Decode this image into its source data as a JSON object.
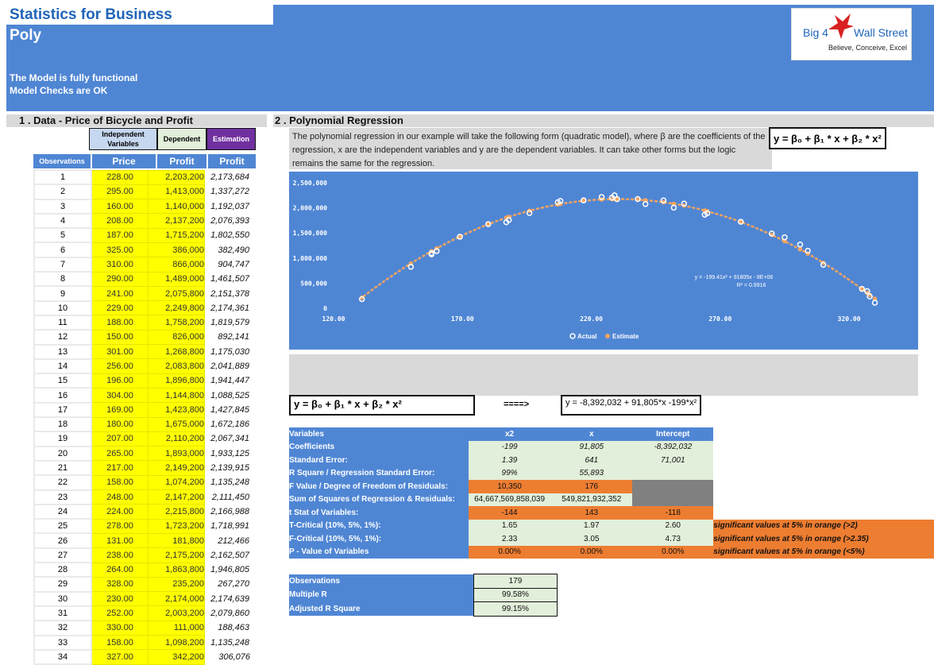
{
  "header": {
    "title": "Statistics for Business",
    "subtitle": "Poly",
    "status_lines": [
      "The Model is fully functional",
      "Model Checks are OK"
    ],
    "logo": {
      "left": "Big 4",
      "right": "Wall Street",
      "tagline": "Believe, Conceive, Excel"
    }
  },
  "section1": {
    "title": "1 . Data - Price of Bicycle and Profit",
    "independent_label": "Independent Variables",
    "dependent_label": "Dependent",
    "estimation_label": "Estimation",
    "columns": [
      "Observations",
      "Price",
      "Profit",
      "Profit"
    ],
    "rows": [
      [
        "1",
        "228.00",
        "2,203,200",
        "2,173,684"
      ],
      [
        "2",
        "295.00",
        "1,413,000",
        "1,337,272"
      ],
      [
        "3",
        "160.00",
        "1,140,000",
        "1,192,037"
      ],
      [
        "4",
        "208.00",
        "2,137,200",
        "2,076,393"
      ],
      [
        "5",
        "187.00",
        "1,715,200",
        "1,802,550"
      ],
      [
        "6",
        "325.00",
        "386,000",
        "382,490"
      ],
      [
        "7",
        "310.00",
        "866,000",
        "904,747"
      ],
      [
        "8",
        "290.00",
        "1,489,000",
        "1,461,507"
      ],
      [
        "9",
        "241.00",
        "2,075,800",
        "2,151,378"
      ],
      [
        "10",
        "229.00",
        "2,249,800",
        "2,174,361"
      ],
      [
        "11",
        "188.00",
        "1,758,200",
        "1,819,579"
      ],
      [
        "12",
        "150.00",
        "826,000",
        "892,141"
      ],
      [
        "13",
        "301.00",
        "1,268,800",
        "1,175,030"
      ],
      [
        "14",
        "256.00",
        "2,083,800",
        "2,041,889"
      ],
      [
        "15",
        "196.00",
        "1,896,800",
        "1,941,447"
      ],
      [
        "16",
        "304.00",
        "1,144,800",
        "1,088,525"
      ],
      [
        "17",
        "169.00",
        "1,423,800",
        "1,427,845"
      ],
      [
        "18",
        "180.00",
        "1,675,000",
        "1,672,186"
      ],
      [
        "19",
        "207.00",
        "2,110,200",
        "2,067,341"
      ],
      [
        "20",
        "265.00",
        "1,893,000",
        "1,933,125"
      ],
      [
        "21",
        "217.00",
        "2,149,200",
        "2,139,915"
      ],
      [
        "22",
        "158.00",
        "1,074,200",
        "1,135,248"
      ],
      [
        "23",
        "248.00",
        "2,147,200",
        "2,111,450"
      ],
      [
        "24",
        "224.00",
        "2,215,800",
        "2,166,988"
      ],
      [
        "25",
        "278.00",
        "1,723,200",
        "1,718,991"
      ],
      [
        "26",
        "131.00",
        "181,800",
        "212,466"
      ],
      [
        "27",
        "238.00",
        "2,175,200",
        "2,162,507"
      ],
      [
        "28",
        "264.00",
        "1,863,800",
        "1,946,805"
      ],
      [
        "29",
        "328.00",
        "235,200",
        "267,270"
      ],
      [
        "30",
        "230.00",
        "2,174,000",
        "2,174,639"
      ],
      [
        "31",
        "252.00",
        "2,003,200",
        "2,079,860"
      ],
      [
        "32",
        "330.00",
        "111,000",
        "188,463"
      ],
      [
        "33",
        "158.00",
        "1,098,200",
        "1,135,248"
      ],
      [
        "34",
        "327.00",
        "342,200",
        "306,076"
      ]
    ]
  },
  "section2": {
    "title": "2 . Polynomial Regression",
    "description": "The polynomial regression in our example will take the following form (quadratic model), where β are the coefficients of the regression, x are the independent variables and y are the dependent variables. It can take other forms but the logic remains the same for the regression.",
    "equation": "y = β₀ + β₁ * x + β₂ * x²",
    "arrow": "====>",
    "fitted_equation": "y = -8,392,032 + 91,805*x -199*x²"
  },
  "chart_data": {
    "type": "scatter",
    "x_ticks": [
      "120.00",
      "170.00",
      "220.00",
      "270.00",
      "320.00"
    ],
    "y_ticks": [
      "0",
      "500,000",
      "1,000,000",
      "1,500,000",
      "2,000,000",
      "2,500,000"
    ],
    "xlim": [
      120,
      340
    ],
    "ylim": [
      0,
      2500000
    ],
    "trendline_label": "y = -199.41x² + 91805x - 8E+06",
    "r2_label": "R² = 0.9916",
    "legend": [
      "Actual",
      "Estimate"
    ],
    "legend_position": "bottom",
    "colors": {
      "actual": "#ffffff",
      "estimate": "#f4a460"
    },
    "coefficients": {
      "a": -199.41,
      "b": 91805,
      "c": -8392032
    },
    "series": [
      {
        "name": "Actual",
        "x": [
          228,
          295,
          160,
          208,
          187,
          325,
          310,
          290,
          241,
          229,
          188,
          150,
          301,
          256,
          196,
          304,
          169,
          180,
          207,
          265,
          217,
          158,
          248,
          224,
          278,
          131,
          238,
          264,
          328,
          230,
          252,
          330,
          158,
          327
        ],
        "values": [
          2203200,
          1413000,
          1140000,
          2137200,
          1715200,
          386000,
          866000,
          1489000,
          2075800,
          2249800,
          1758200,
          826000,
          1268800,
          2083800,
          1896800,
          1144800,
          1423800,
          1675000,
          2110200,
          1893000,
          2149200,
          1074200,
          2147200,
          2215800,
          1723200,
          181800,
          2175200,
          1863800,
          235200,
          2174000,
          2003200,
          111000,
          1098200,
          342200
        ]
      },
      {
        "name": "Estimate",
        "x": [
          228,
          295,
          160,
          208,
          187,
          325,
          310,
          290,
          241,
          229,
          188,
          150,
          301,
          256,
          196,
          304,
          169,
          180,
          207,
          265,
          217,
          158,
          248,
          224,
          278,
          131,
          238,
          264,
          328,
          230,
          252,
          330,
          158,
          327
        ],
        "values": [
          2173684,
          1337272,
          1192037,
          2076393,
          1802550,
          382490,
          904747,
          1461507,
          2151378,
          2174361,
          1819579,
          892141,
          1175030,
          2041889,
          1941447,
          1088525,
          1427845,
          1672186,
          2067341,
          1933125,
          2139915,
          1135248,
          2111450,
          2166988,
          1718991,
          212466,
          2162507,
          1946805,
          267270,
          2174639,
          2079860,
          188463,
          1135248,
          306076
        ]
      }
    ]
  },
  "regression": {
    "headers": [
      "Variables",
      "x2",
      "x",
      "Intercept"
    ],
    "rows": [
      {
        "label": "Coefficients",
        "vals": [
          "-199",
          "91,805",
          "-8,392,032"
        ],
        "italic": true
      },
      {
        "label": "Standard Error:",
        "vals": [
          "1.39",
          "641",
          "71,001"
        ],
        "italic": true
      },
      {
        "label": "R Square / Regression Standard Error:",
        "vals": [
          "99%",
          "55,893",
          ""
        ],
        "italic": true
      },
      {
        "label": "F Value / Degree of Freedom of Residuals:",
        "vals": [
          "10,350",
          "176",
          ""
        ]
      },
      {
        "label": "Sum of Squares of Regression & Residuals:",
        "vals": [
          "64,667,569,858,039",
          "549,821,932,352",
          ""
        ]
      },
      {
        "label": "t Stat of Variables:",
        "vals": [
          "-144",
          "143",
          "-118"
        ]
      },
      {
        "label": "T-Critical (10%, 5%, 1%):",
        "vals": [
          "1.65",
          "1.97",
          "2.60"
        ],
        "note": "significant values at 5% in orange (>2)"
      },
      {
        "label": "F-Critical (10%, 5%, 1%):",
        "vals": [
          "2.33",
          "3.05",
          "4.73"
        ],
        "note": "significant values at 5% in orange (>2.35)"
      },
      {
        "label": "P - Value of Variables",
        "vals": [
          "0.00%",
          "0.00%",
          "0.00%"
        ],
        "note": "significant values at 5% in orange (<5%)"
      }
    ]
  },
  "summary": {
    "rows": [
      {
        "label": "Observations",
        "value": "179"
      },
      {
        "label": "Multiple R",
        "value": "99.58%"
      },
      {
        "label": "Adjusted R Square",
        "value": "99.15%"
      }
    ]
  }
}
